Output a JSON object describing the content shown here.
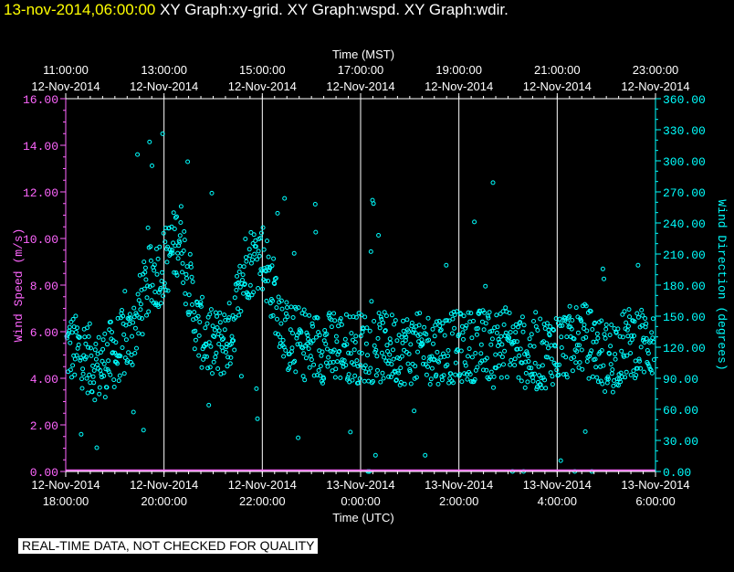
{
  "title": {
    "timestamp": "13-nov-2014,06:00:00",
    "graphs": "XY Graph:xy-grid.  XY Graph:wspd.  XY Graph:wdir."
  },
  "note": "REAL-TIME DATA, NOT CHECKED FOR QUALITY",
  "colors": {
    "wspd": "#ff66ff",
    "wdir": "#00ffff",
    "grid": "#ffffff"
  },
  "chart_data": {
    "type": "scatter",
    "top_axis": {
      "label": "Time (MST)",
      "ticks": [
        {
          "time": "11:00:00",
          "date": "12-Nov-2014"
        },
        {
          "time": "13:00:00",
          "date": "12-Nov-2014"
        },
        {
          "time": "15:00:00",
          "date": "12-Nov-2014"
        },
        {
          "time": "17:00:00",
          "date": "12-Nov-2014"
        },
        {
          "time": "19:00:00",
          "date": "12-Nov-2014"
        },
        {
          "time": "21:00:00",
          "date": "12-Nov-2014"
        },
        {
          "time": "23:00:00",
          "date": "12-Nov-2014"
        }
      ]
    },
    "bottom_axis": {
      "label": "Time (UTC)",
      "range": [
        "2014-11-12T18:00:00Z",
        "2014-11-13T06:00:00Z"
      ],
      "ticks": [
        {
          "date": "12-Nov-2014",
          "time": "18:00:00"
        },
        {
          "date": "12-Nov-2014",
          "time": "20:00:00"
        },
        {
          "date": "12-Nov-2014",
          "time": "22:00:00"
        },
        {
          "date": "13-Nov-2014",
          "time": "0:00:00"
        },
        {
          "date": "13-Nov-2014",
          "time": "2:00:00"
        },
        {
          "date": "13-Nov-2014",
          "time": "4:00:00"
        },
        {
          "date": "13-Nov-2014",
          "time": "6:00:00"
        }
      ]
    },
    "left_axis": {
      "label": "Wind Speed (m/s)",
      "ylim": [
        0,
        16
      ],
      "ticks": [
        "0.00",
        "2.00",
        "4.00",
        "6.00",
        "8.00",
        "10.00",
        "12.00",
        "14.00",
        "16.00"
      ]
    },
    "right_axis": {
      "label": "Wind Direction (degrees)",
      "ylim": [
        0,
        360
      ],
      "ticks": [
        "0.00",
        "30.00",
        "60.00",
        "90.00",
        "120.00",
        "150.00",
        "180.00",
        "210.00",
        "240.00",
        "270.00",
        "300.00",
        "330.00",
        "360.00"
      ]
    },
    "vertical_grid": true,
    "series": [
      {
        "axis": "left",
        "marker": "line",
        "points": [
          [
            "2014-11-12T18:00:00Z",
            0.05
          ],
          [
            "2014-11-12T20:00:00Z",
            0.05
          ],
          [
            "2014-11-12T22:00:00Z",
            0.05
          ],
          [
            "2014-11-13T00:00:00Z",
            0.05
          ],
          [
            "2014-11-13T02:00:00Z",
            0.05
          ],
          [
            "2014-11-13T04:00:00Z",
            0.05
          ],
          [
            "2014-11-13T06:00:00Z",
            0.05
          ]
        ]
      },
      {
        "axis": "right",
        "marker": "circle",
        "samples": [
          [
            "2014-11-12T18:00:00Z",
            120
          ],
          [
            "2014-11-12T18:20:00Z",
            115
          ],
          [
            "2014-11-12T18:40:00Z",
            100
          ],
          [
            "2014-11-12T19:00:00Z",
            115
          ],
          [
            "2014-11-12T19:20:00Z",
            130
          ],
          [
            "2014-11-12T19:40:00Z",
            180
          ],
          [
            "2014-11-12T20:00:00Z",
            200
          ],
          [
            "2014-11-12T20:20:00Z",
            230
          ],
          [
            "2014-11-12T20:40:00Z",
            140
          ],
          [
            "2014-11-12T21:00:00Z",
            120
          ],
          [
            "2014-11-12T21:20:00Z",
            130
          ],
          [
            "2014-11-12T21:40:00Z",
            200
          ],
          [
            "2014-11-12T22:00:00Z",
            210
          ],
          [
            "2014-11-12T22:30:00Z",
            130
          ],
          [
            "2014-11-12T23:00:00Z",
            120
          ],
          [
            "2014-11-13T00:00:00Z",
            120
          ],
          [
            "2014-11-13T01:00:00Z",
            118
          ],
          [
            "2014-11-13T02:00:00Z",
            120
          ],
          [
            "2014-11-13T03:00:00Z",
            125
          ],
          [
            "2014-11-13T03:30:00Z",
            110
          ],
          [
            "2014-11-13T04:00:00Z",
            120
          ],
          [
            "2014-11-13T04:30:00Z",
            130
          ],
          [
            "2014-11-13T05:00:00Z",
            110
          ],
          [
            "2014-11-13T05:30:00Z",
            125
          ],
          [
            "2014-11-13T06:00:00Z",
            125
          ]
        ]
      }
    ]
  }
}
